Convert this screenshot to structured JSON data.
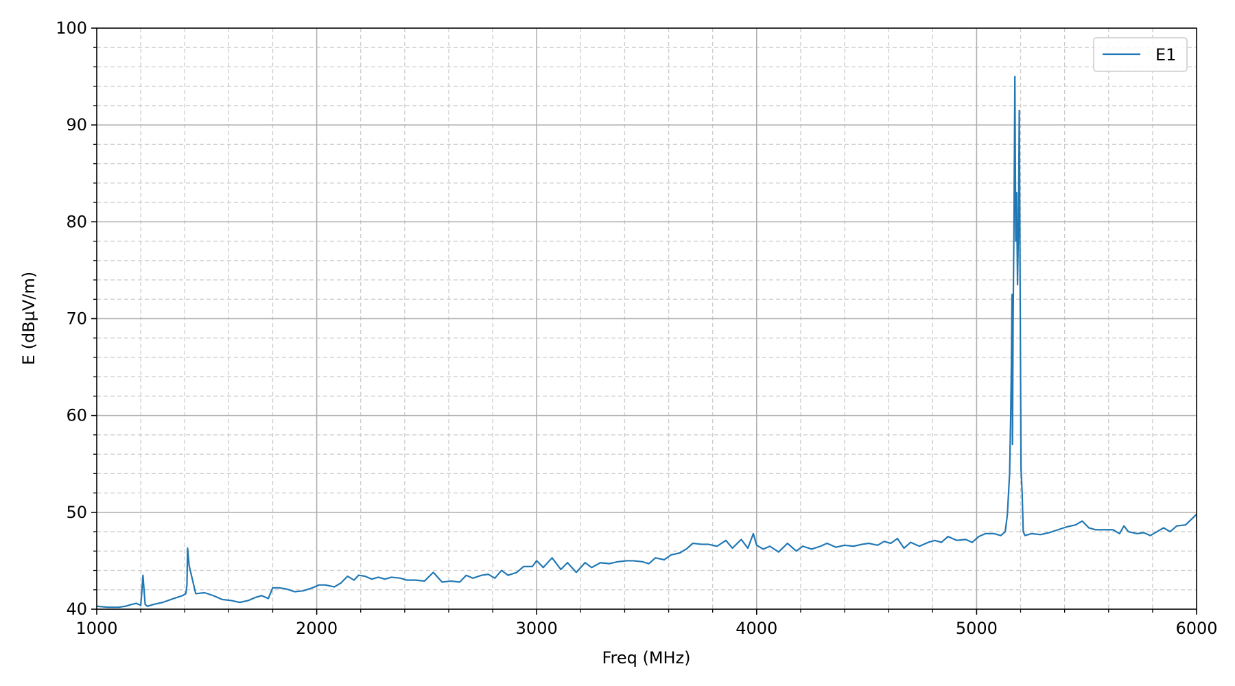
{
  "chart_data": {
    "type": "line",
    "title": "",
    "xlabel": "Freq (MHz)",
    "ylabel": "E (dBµV/m)",
    "xlim": [
      1000,
      6000
    ],
    "ylim": [
      40,
      100
    ],
    "x_ticks": [
      1000,
      2000,
      3000,
      4000,
      5000,
      6000
    ],
    "y_ticks": [
      40,
      50,
      60,
      70,
      80,
      90,
      100
    ],
    "x_minor_step": 200,
    "y_minor_step": 2,
    "grid": {
      "major": "solid",
      "minor": "dashed"
    },
    "legend": {
      "position": "top-right",
      "entries": [
        "E1"
      ]
    },
    "series": [
      {
        "name": "E1",
        "color": "#1f77b4",
        "points": [
          [
            1000,
            40.3
          ],
          [
            1050,
            40.2
          ],
          [
            1100,
            40.2
          ],
          [
            1130,
            40.3
          ],
          [
            1160,
            40.5
          ],
          [
            1180,
            40.6
          ],
          [
            1200,
            40.4
          ],
          [
            1205,
            41.8
          ],
          [
            1210,
            43.5
          ],
          [
            1220,
            40.5
          ],
          [
            1230,
            40.3
          ],
          [
            1260,
            40.5
          ],
          [
            1300,
            40.7
          ],
          [
            1350,
            41.1
          ],
          [
            1390,
            41.4
          ],
          [
            1405,
            41.6
          ],
          [
            1410,
            42.5
          ],
          [
            1413,
            46.3
          ],
          [
            1420,
            44.5
          ],
          [
            1450,
            41.6
          ],
          [
            1490,
            41.7
          ],
          [
            1530,
            41.4
          ],
          [
            1570,
            41.0
          ],
          [
            1610,
            40.9
          ],
          [
            1650,
            40.7
          ],
          [
            1690,
            40.9
          ],
          [
            1720,
            41.2
          ],
          [
            1750,
            41.4
          ],
          [
            1780,
            41.1
          ],
          [
            1800,
            42.2
          ],
          [
            1830,
            42.2
          ],
          [
            1860,
            42.1
          ],
          [
            1900,
            41.8
          ],
          [
            1940,
            41.9
          ],
          [
            1980,
            42.2
          ],
          [
            2010,
            42.5
          ],
          [
            2040,
            42.5
          ],
          [
            2080,
            42.3
          ],
          [
            2110,
            42.7
          ],
          [
            2140,
            43.4
          ],
          [
            2170,
            43.0
          ],
          [
            2190,
            43.5
          ],
          [
            2220,
            43.4
          ],
          [
            2250,
            43.1
          ],
          [
            2280,
            43.3
          ],
          [
            2310,
            43.1
          ],
          [
            2340,
            43.3
          ],
          [
            2380,
            43.2
          ],
          [
            2410,
            43.0
          ],
          [
            2450,
            43.0
          ],
          [
            2490,
            42.9
          ],
          [
            2530,
            43.8
          ],
          [
            2570,
            42.8
          ],
          [
            2610,
            42.9
          ],
          [
            2650,
            42.8
          ],
          [
            2680,
            43.5
          ],
          [
            2710,
            43.2
          ],
          [
            2750,
            43.5
          ],
          [
            2780,
            43.6
          ],
          [
            2810,
            43.2
          ],
          [
            2840,
            44.0
          ],
          [
            2870,
            43.5
          ],
          [
            2910,
            43.8
          ],
          [
            2940,
            44.4
          ],
          [
            2980,
            44.4
          ],
          [
            3000,
            45.0
          ],
          [
            3030,
            44.3
          ],
          [
            3070,
            45.3
          ],
          [
            3110,
            44.1
          ],
          [
            3140,
            44.8
          ],
          [
            3180,
            43.8
          ],
          [
            3220,
            44.8
          ],
          [
            3250,
            44.3
          ],
          [
            3290,
            44.8
          ],
          [
            3330,
            44.7
          ],
          [
            3370,
            44.9
          ],
          [
            3410,
            45.0
          ],
          [
            3440,
            45.0
          ],
          [
            3480,
            44.9
          ],
          [
            3510,
            44.7
          ],
          [
            3540,
            45.3
          ],
          [
            3580,
            45.1
          ],
          [
            3610,
            45.6
          ],
          [
            3650,
            45.8
          ],
          [
            3680,
            46.2
          ],
          [
            3710,
            46.8
          ],
          [
            3750,
            46.7
          ],
          [
            3780,
            46.7
          ],
          [
            3820,
            46.5
          ],
          [
            3860,
            47.1
          ],
          [
            3890,
            46.3
          ],
          [
            3930,
            47.2
          ],
          [
            3960,
            46.3
          ],
          [
            3985,
            47.8
          ],
          [
            4000,
            46.6
          ],
          [
            4030,
            46.2
          ],
          [
            4060,
            46.5
          ],
          [
            4100,
            45.9
          ],
          [
            4140,
            46.8
          ],
          [
            4180,
            46.0
          ],
          [
            4210,
            46.5
          ],
          [
            4250,
            46.2
          ],
          [
            4290,
            46.5
          ],
          [
            4320,
            46.8
          ],
          [
            4360,
            46.4
          ],
          [
            4400,
            46.6
          ],
          [
            4440,
            46.5
          ],
          [
            4480,
            46.7
          ],
          [
            4510,
            46.8
          ],
          [
            4550,
            46.6
          ],
          [
            4580,
            47.0
          ],
          [
            4610,
            46.8
          ],
          [
            4640,
            47.3
          ],
          [
            4670,
            46.3
          ],
          [
            4700,
            46.9
          ],
          [
            4740,
            46.5
          ],
          [
            4780,
            46.9
          ],
          [
            4810,
            47.1
          ],
          [
            4840,
            46.9
          ],
          [
            4870,
            47.5
          ],
          [
            4910,
            47.1
          ],
          [
            4950,
            47.2
          ],
          [
            4980,
            46.9
          ],
          [
            5010,
            47.5
          ],
          [
            5040,
            47.8
          ],
          [
            5080,
            47.8
          ],
          [
            5110,
            47.6
          ],
          [
            5130,
            48.0
          ],
          [
            5140,
            49.8
          ],
          [
            5150,
            54.0
          ],
          [
            5155,
            60.0
          ],
          [
            5158,
            65.0
          ],
          [
            5161,
            72.5
          ],
          [
            5163,
            57.0
          ],
          [
            5166,
            70.0
          ],
          [
            5170,
            80.0
          ],
          [
            5174,
            95.0
          ],
          [
            5178,
            78.0
          ],
          [
            5182,
            83.0
          ],
          [
            5186,
            73.5
          ],
          [
            5190,
            79.0
          ],
          [
            5194,
            91.5
          ],
          [
            5198,
            72.5
          ],
          [
            5202,
            54.5
          ],
          [
            5207,
            52.0
          ],
          [
            5212,
            48.0
          ],
          [
            5220,
            47.6
          ],
          [
            5250,
            47.8
          ],
          [
            5290,
            47.7
          ],
          [
            5330,
            47.9
          ],
          [
            5370,
            48.2
          ],
          [
            5410,
            48.5
          ],
          [
            5450,
            48.7
          ],
          [
            5480,
            49.1
          ],
          [
            5510,
            48.4
          ],
          [
            5540,
            48.2
          ],
          [
            5580,
            48.2
          ],
          [
            5620,
            48.2
          ],
          [
            5650,
            47.8
          ],
          [
            5670,
            48.6
          ],
          [
            5690,
            48.0
          ],
          [
            5730,
            47.8
          ],
          [
            5760,
            47.9
          ],
          [
            5790,
            47.6
          ],
          [
            5820,
            48.0
          ],
          [
            5850,
            48.4
          ],
          [
            5880,
            48.0
          ],
          [
            5910,
            48.6
          ],
          [
            5950,
            48.7
          ],
          [
            6000,
            49.8
          ]
        ]
      }
    ]
  }
}
